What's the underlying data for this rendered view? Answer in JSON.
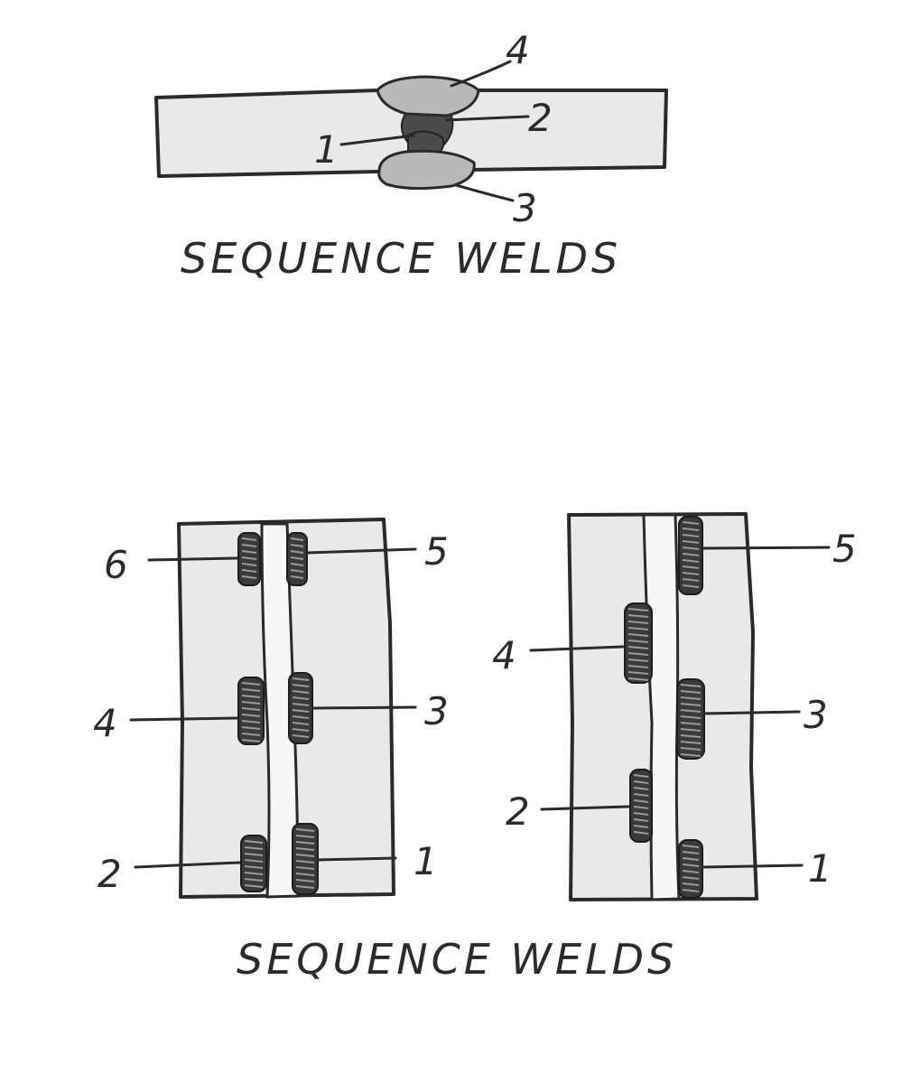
{
  "top_figure": {
    "caption": "SEQUENCE WELDS",
    "labels": {
      "w1": "1",
      "w2": "2",
      "w3": "3",
      "w4": "4"
    }
  },
  "bottom_figure": {
    "caption": "SEQUENCE WELDS",
    "left_panel": {
      "labels": {
        "w1": "1",
        "w2": "2",
        "w3": "3",
        "w4": "4",
        "w5": "5",
        "w6": "6"
      }
    },
    "right_panel": {
      "labels": {
        "w1": "1",
        "w2": "2",
        "w3": "3",
        "w4": "4",
        "w5": "5"
      }
    }
  }
}
